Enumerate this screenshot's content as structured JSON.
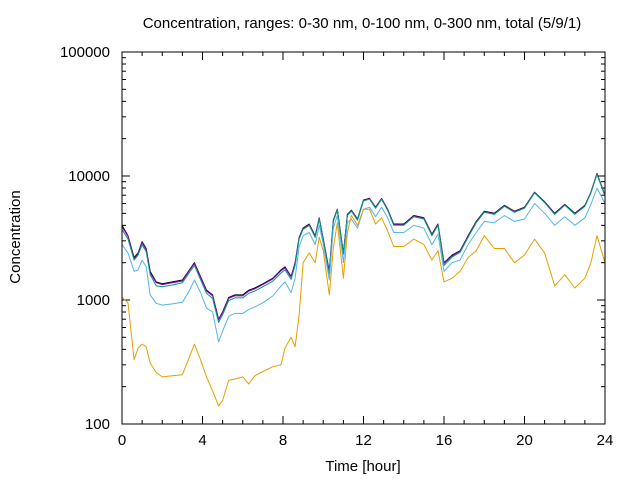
{
  "chart_data": {
    "type": "line",
    "title": "Concentration, ranges: 0-30 nm, 0-100 nm, 0-300 nm, total (5/9/1)",
    "xlabel": "Time [hour]",
    "ylabel": "Concentration",
    "xlim": [
      0,
      24
    ],
    "ylim": [
      100,
      100000
    ],
    "yscale": "log",
    "x_ticks": [
      0,
      4,
      8,
      12,
      16,
      20,
      24
    ],
    "x_tick_labels": [
      "0",
      "4",
      "8",
      "12",
      "16",
      "20",
      "24"
    ],
    "y_ticks": [
      100,
      1000,
      10000,
      100000
    ],
    "y_tick_labels": [
      "100",
      "1000",
      "10000",
      "100000"
    ],
    "grid": false,
    "legend": "none",
    "x": [
      0,
      0.3,
      0.6,
      0.8,
      1.0,
      1.2,
      1.4,
      1.7,
      2.0,
      2.5,
      3.0,
      3.3,
      3.6,
      3.9,
      4.2,
      4.5,
      4.8,
      5.0,
      5.3,
      5.6,
      6.0,
      6.3,
      6.6,
      7.0,
      7.5,
      7.9,
      8.1,
      8.4,
      8.6,
      8.8,
      9.0,
      9.3,
      9.6,
      9.8,
      10.0,
      10.3,
      10.5,
      10.7,
      11.0,
      11.2,
      11.4,
      11.7,
      12.0,
      12.3,
      12.6,
      12.9,
      13.2,
      13.5,
      14.0,
      14.5,
      15.0,
      15.4,
      15.7,
      16.0,
      16.4,
      16.8,
      17.2,
      17.6,
      18.0,
      18.5,
      19.0,
      19.5,
      20.0,
      20.5,
      21.0,
      21.5,
      22.0,
      22.5,
      23.0,
      23.3,
      23.6,
      24.0
    ],
    "series": [
      {
        "color": "#000000",
        "values": [
          4000,
          3300,
          2200,
          2400,
          2950,
          2600,
          1700,
          1400,
          1350,
          1400,
          1450,
          1700,
          2000,
          1550,
          1200,
          1100,
          700,
          800,
          1050,
          1100,
          1100,
          1200,
          1250,
          1350,
          1500,
          1750,
          1850,
          1550,
          2000,
          3200,
          3800,
          4100,
          3300,
          4600,
          3100,
          1700,
          4400,
          5400,
          2400,
          4900,
          5300,
          4500,
          6400,
          6600,
          5600,
          6600,
          5400,
          4100,
          4100,
          4800,
          4600,
          3400,
          4100,
          2000,
          2300,
          2500,
          3300,
          4300,
          5200,
          5000,
          5800,
          5200,
          5600,
          7400,
          6200,
          5000,
          5900,
          5000,
          5800,
          7400,
          10500,
          7000
        ]
      },
      {
        "color": "#9400d3",
        "values": [
          3900,
          3250,
          2150,
          2350,
          2900,
          2550,
          1650,
          1380,
          1330,
          1380,
          1420,
          1680,
          1970,
          1520,
          1180,
          1080,
          690,
          790,
          1030,
          1080,
          1080,
          1180,
          1230,
          1330,
          1480,
          1720,
          1820,
          1530,
          1970,
          3150,
          3750,
          4050,
          3250,
          4550,
          3050,
          1680,
          4350,
          5350,
          2370,
          4850,
          5250,
          4450,
          6350,
          6550,
          5550,
          6550,
          5350,
          4050,
          4050,
          4750,
          4550,
          3350,
          4050,
          1970,
          2270,
          2470,
          3250,
          4250,
          5150,
          4950,
          5750,
          5150,
          5550,
          7350,
          6150,
          4950,
          5850,
          4950,
          5750,
          7350,
          10400,
          6950
        ]
      },
      {
        "color": "#009e73",
        "values": [
          3700,
          3100,
          2100,
          2300,
          2800,
          2450,
          1600,
          1300,
          1280,
          1320,
          1380,
          1620,
          1900,
          1460,
          1130,
          1030,
          660,
          760,
          990,
          1040,
          1040,
          1130,
          1180,
          1280,
          1420,
          1650,
          1750,
          1470,
          1900,
          3100,
          3700,
          4000,
          3200,
          4500,
          3000,
          1620,
          4300,
          5300,
          2330,
          4800,
          5200,
          4400,
          6300,
          6500,
          5500,
          6500,
          5300,
          4000,
          4000,
          4700,
          4500,
          3300,
          4000,
          1900,
          2220,
          2420,
          3200,
          4200,
          5100,
          4900,
          5700,
          5100,
          5500,
          7300,
          6100,
          4900,
          5800,
          4900,
          5700,
          7300,
          10300,
          6900
        ]
      },
      {
        "color": "#56b4e9",
        "values": [
          2800,
          2400,
          1700,
          1750,
          2100,
          1850,
          1100,
          940,
          910,
          930,
          960,
          1150,
          1450,
          1150,
          860,
          800,
          460,
          560,
          740,
          780,
          780,
          840,
          880,
          950,
          1080,
          1300,
          1400,
          1150,
          1500,
          2700,
          3300,
          3500,
          2800,
          4000,
          2800,
          1450,
          3800,
          4800,
          2000,
          4200,
          4500,
          3800,
          5400,
          5600,
          4700,
          5600,
          4600,
          3500,
          3500,
          4000,
          3800,
          2800,
          3400,
          1700,
          2000,
          2100,
          2800,
          3500,
          4300,
          4200,
          4800,
          4300,
          4500,
          6000,
          5000,
          4000,
          4700,
          4000,
          4600,
          5900,
          8000,
          6000
        ]
      },
      {
        "color": "#e69f00",
        "values": [
          1050,
          950,
          330,
          410,
          440,
          420,
          310,
          260,
          240,
          245,
          250,
          330,
          440,
          330,
          240,
          185,
          140,
          155,
          225,
          230,
          240,
          210,
          245,
          265,
          290,
          300,
          410,
          500,
          420,
          750,
          2000,
          2400,
          2000,
          3200,
          2500,
          1100,
          2600,
          4200,
          1500,
          3500,
          4800,
          4000,
          5400,
          5400,
          4100,
          4600,
          3600,
          2700,
          2700,
          3100,
          2800,
          2100,
          2500,
          1400,
          1500,
          1700,
          2200,
          2500,
          3300,
          2600,
          2600,
          2000,
          2300,
          3100,
          2400,
          1300,
          1600,
          1250,
          1500,
          2000,
          3300,
          2000
        ]
      }
    ]
  }
}
